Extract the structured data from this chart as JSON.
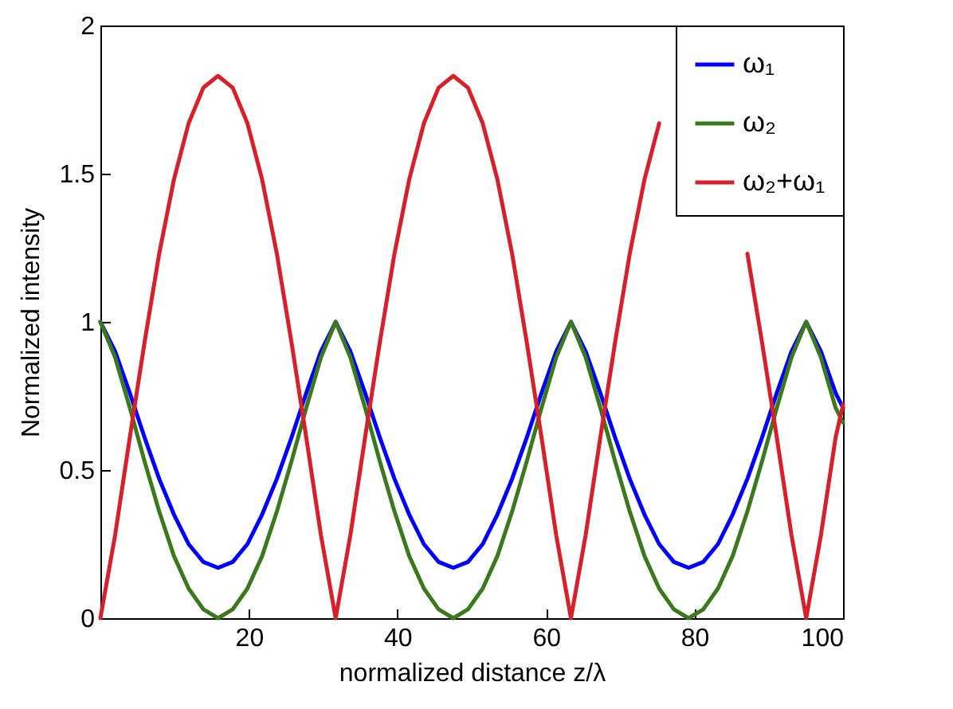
{
  "chart_data": {
    "type": "line",
    "xlabel": "normalized distance z/λ",
    "ylabel": "Normalized intensity",
    "x": [
      0,
      1.98,
      3.96,
      5.94,
      7.92,
      9.9,
      11.88,
      13.86,
      15.84,
      17.82,
      19.8,
      21.78,
      23.76,
      25.74,
      27.72,
      29.7,
      31.68,
      33.66,
      35.64,
      37.62,
      39.6,
      41.58,
      43.56,
      45.54,
      47.52,
      49.5,
      51.48,
      53.46,
      55.44,
      57.42,
      59.4,
      61.38,
      63.36,
      65.34,
      67.32,
      69.3,
      71.28,
      73.26,
      75.24,
      77.22,
      79.2,
      81.18,
      83.16,
      85.14,
      87.12,
      89.1,
      91.08,
      93.06,
      95.04,
      97.02,
      99,
      100
    ],
    "series": [
      {
        "name": "ω₁",
        "color": "#0000ff",
        "values": [
          1,
          0.9,
          0.76,
          0.61,
          0.47,
          0.35,
          0.25,
          0.19,
          0.17,
          0.19,
          0.25,
          0.35,
          0.47,
          0.61,
          0.76,
          0.9,
          1,
          0.9,
          0.76,
          0.61,
          0.47,
          0.35,
          0.25,
          0.19,
          0.17,
          0.19,
          0.25,
          0.35,
          0.47,
          0.61,
          0.76,
          0.9,
          1,
          0.9,
          0.76,
          0.61,
          0.47,
          0.35,
          0.25,
          0.19,
          0.17,
          0.19,
          0.25,
          0.35,
          0.47,
          0.61,
          0.76,
          0.9,
          1,
          0.9,
          0.76,
          0.71
        ]
      },
      {
        "name": "ω₂",
        "color": "#3b7a1c",
        "values": [
          1,
          0.88,
          0.71,
          0.53,
          0.36,
          0.21,
          0.1,
          0.03,
          0,
          0.03,
          0.1,
          0.21,
          0.36,
          0.53,
          0.71,
          0.88,
          1,
          0.88,
          0.71,
          0.53,
          0.36,
          0.21,
          0.1,
          0.03,
          0,
          0.03,
          0.1,
          0.21,
          0.36,
          0.53,
          0.71,
          0.88,
          1,
          0.88,
          0.71,
          0.53,
          0.36,
          0.21,
          0.1,
          0.03,
          0,
          0.03,
          0.1,
          0.21,
          0.36,
          0.53,
          0.71,
          0.88,
          1,
          0.88,
          0.71,
          0.66
        ]
      },
      {
        "name": "ω₂+ω₁",
        "color": "#d7202a",
        "values": [
          0,
          0.28,
          0.61,
          0.93,
          1.23,
          1.48,
          1.67,
          1.79,
          1.83,
          1.79,
          1.67,
          1.48,
          1.23,
          0.93,
          0.61,
          0.28,
          0,
          0.28,
          0.61,
          0.93,
          1.23,
          1.48,
          1.67,
          1.79,
          1.83,
          1.79,
          1.67,
          1.48,
          1.23,
          0.93,
          0.61,
          0.28,
          0,
          0.28,
          0.61,
          0.93,
          1.23,
          1.48,
          1.67,
          null,
          null,
          null,
          null,
          null,
          1.23,
          0.93,
          0.61,
          0.28,
          0,
          0.28,
          0.61,
          0.72
        ]
      }
    ],
    "xlim": [
      0,
      100
    ],
    "xticks": [
      20,
      40,
      60,
      80,
      100
    ],
    "ylim": [
      0,
      2
    ],
    "yticks": [
      {
        "value": 0,
        "label": "0"
      },
      0.5,
      {
        "value": 1,
        "label": "1"
      },
      1.5,
      {
        "value": 2,
        "label": "2"
      }
    ],
    "grid": false,
    "legend": "top right",
    "marker": "none",
    "line_style": "solid"
  }
}
